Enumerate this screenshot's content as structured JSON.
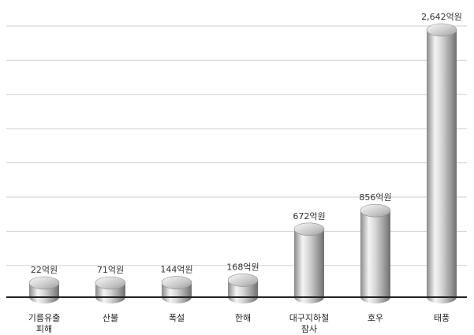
{
  "chart_data": {
    "type": "bar",
    "categories": [
      [
        "기름유출",
        "피해"
      ],
      [
        "산불"
      ],
      [
        "폭설"
      ],
      [
        "한해"
      ],
      [
        "대구지하철",
        "참사"
      ],
      [
        "호우"
      ],
      [
        "태풍"
      ]
    ],
    "values": [
      22,
      71,
      144,
      168,
      672,
      856,
      2642
    ],
    "value_labels": [
      "22억원",
      "71억원",
      "144억원",
      "168억원",
      "672억원",
      "856억원",
      "2,642억원"
    ],
    "title": "",
    "xlabel": "",
    "ylabel": "",
    "grid": true,
    "legend": "none"
  }
}
